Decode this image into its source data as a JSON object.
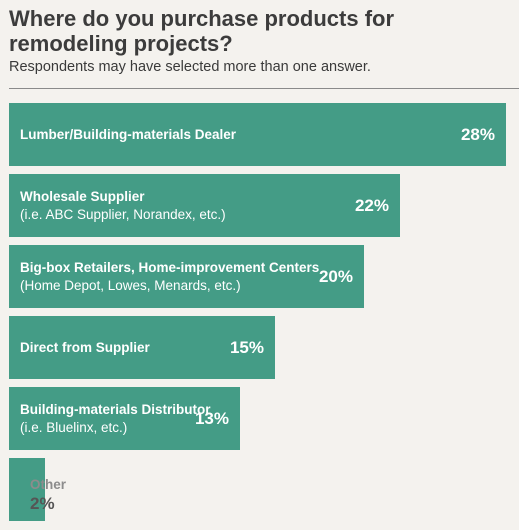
{
  "title": "Where do you purchase products for remodeling projects?",
  "subtitle": "Respondents may have selected more than one answer.",
  "colors": {
    "bar": "#449c86",
    "background": "#f4f2ee"
  },
  "chart_data": {
    "type": "bar",
    "orientation": "horizontal",
    "unit": "%",
    "categories": [
      "Lumber/Building-materials Dealer",
      "Wholesale Supplier",
      "Big-box Retailers, Home-improvement Centers",
      "Direct from Supplier",
      "Building-materials Distributor",
      "Other"
    ],
    "sublabels": [
      "",
      "(i.e. ABC Supplier, Norandex, etc.)",
      "(Home Depot, Lowes, Menards, etc.)",
      "",
      "(i.e. Bluelinx, etc.)",
      ""
    ],
    "values": [
      28,
      22,
      20,
      15,
      13,
      2
    ],
    "value_labels": [
      "28%",
      "22%",
      "20%",
      "15%",
      "13%",
      "2%"
    ],
    "xlim": [
      0,
      28
    ]
  }
}
